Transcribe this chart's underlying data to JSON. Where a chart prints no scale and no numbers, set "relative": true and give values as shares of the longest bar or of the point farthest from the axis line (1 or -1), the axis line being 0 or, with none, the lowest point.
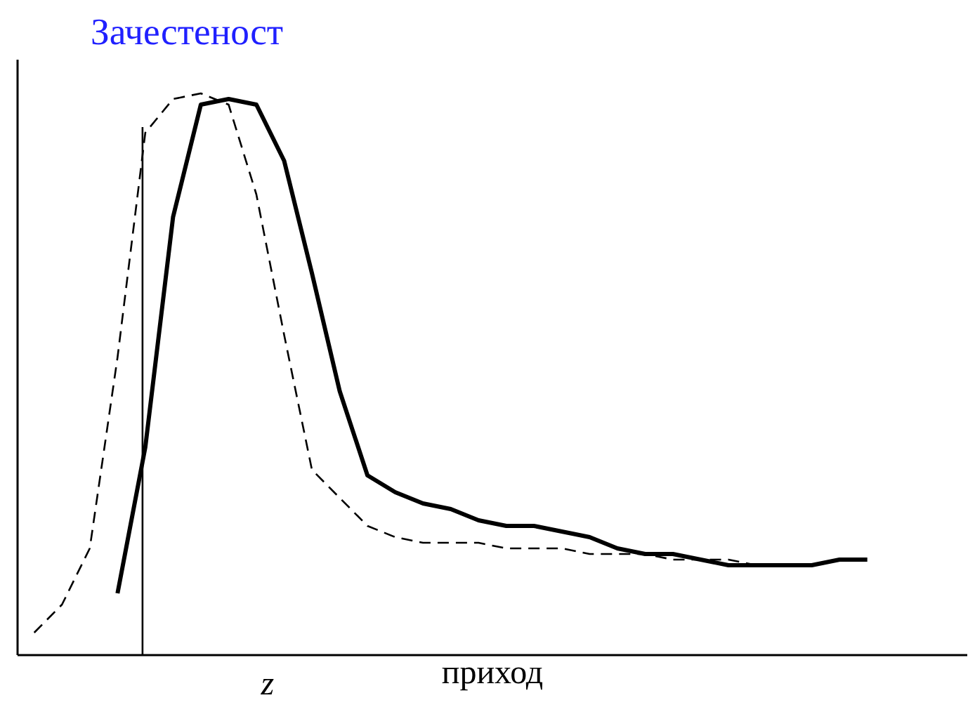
{
  "chart_data": {
    "type": "line",
    "title": "Зачестеност",
    "xlabel": "приход",
    "relative": true,
    "annotations": [
      "z"
    ],
    "marker": "none",
    "categories": [
      null,
      null,
      null,
      null,
      null,
      null,
      null,
      null,
      null,
      null,
      null,
      null,
      null,
      null,
      null,
      null,
      null,
      null,
      null,
      null,
      null,
      null,
      null,
      null,
      null,
      null,
      null,
      null,
      null,
      null,
      null
    ],
    "series": [
      {
        "color": "#000000",
        "line_style": "dashed",
        "values": [
          0.04,
          0.09,
          0.19,
          0.53,
          0.93,
          0.99,
          1.0,
          0.98,
          0.82,
          0.57,
          0.33,
          0.28,
          0.23,
          0.21,
          0.2,
          0.2,
          0.2,
          0.19,
          0.19,
          0.19,
          0.18,
          0.18,
          0.18,
          0.17,
          0.17,
          0.17,
          0.16,
          0.16,
          0.16,
          0.17,
          0.17
        ]
      },
      {
        "color": "#000000",
        "line_style": "solid",
        "values": [
          null,
          null,
          null,
          0.11,
          0.37,
          0.78,
          0.98,
          0.99,
          0.98,
          0.88,
          0.68,
          0.47,
          0.32,
          0.29,
          0.27,
          0.26,
          0.24,
          0.23,
          0.23,
          0.22,
          0.21,
          0.19,
          0.18,
          0.18,
          0.17,
          0.16,
          0.16,
          0.16,
          0.16,
          0.17,
          0.17
        ]
      }
    ]
  }
}
